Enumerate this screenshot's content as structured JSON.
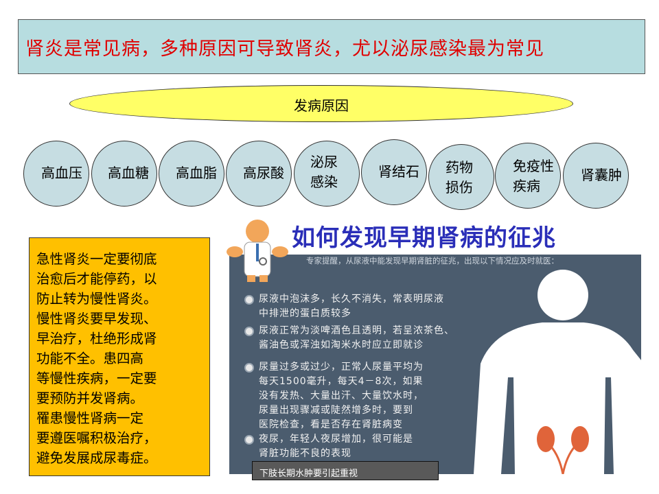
{
  "banner": {
    "text": "肾炎是常见病，多种原因可导致肾炎，尤以泌尿感染最为常见"
  },
  "causes": {
    "title": "发病原因",
    "items": [
      {
        "lines": [
          "高血压"
        ]
      },
      {
        "lines": [
          "高血糖"
        ]
      },
      {
        "lines": [
          "高血脂"
        ]
      },
      {
        "lines": [
          "高尿酸"
        ]
      },
      {
        "lines": [
          "泌尿",
          "感染"
        ]
      },
      {
        "lines": [
          "肾结石"
        ]
      },
      {
        "lines": [
          "药物",
          "损伤"
        ]
      },
      {
        "lines": [
          "免疫性",
          "疾病"
        ]
      },
      {
        "lines": [
          "肾囊肿"
        ]
      }
    ]
  },
  "note": {
    "lines": [
      "急性肾炎一定要彻底",
      "治愈后才能停药，以",
      "防止转为慢性肾炎。",
      "慢性肾炎要早发现、",
      "早治疗，杜绝形成肾",
      "功能不全。患四高",
      "等慢性疾病，一定要",
      "要预防并发肾病。",
      "罹患慢性肾病一定",
      "要遵医嘱积极治疗，",
      "避免发展成尿毒症。"
    ]
  },
  "poster": {
    "title": "如何发现早期肾病的征兆",
    "subtitle": "专家提醒，从尿液中能发现早期肾脏的征兆，出现以下情况应及时就医：",
    "items": [
      {
        "lines": [
          "尿液中泡沫多，长久不消失，常表明尿液",
          "中排泄的蛋白质较多"
        ]
      },
      {
        "lines": [
          "尿液正常为淡啤酒色且透明，若呈浓茶色、",
          "酱油色或浑浊如淘米水时应立即就诊"
        ]
      },
      {
        "lines": [
          "尿量过多或过少，正常人尿量平均为",
          "每天1500毫升，每天4－8次，如果",
          "没有发热、大量出汗、大量饮水时，",
          "尿量出现骤减或陡然增多时，要到",
          "医院检查，看是否存在肾脏病变"
        ]
      },
      {
        "lines": [
          "夜尿，年轻人夜尿增加，很可能是",
          "肾脏功能不良的表现"
        ]
      }
    ],
    "colors": {
      "panel": "#4b5c6e",
      "title": "#2a2eb8",
      "mascot": "#f2a65a"
    }
  },
  "caption": {
    "text": "下肢长期水肿要引起重视"
  }
}
